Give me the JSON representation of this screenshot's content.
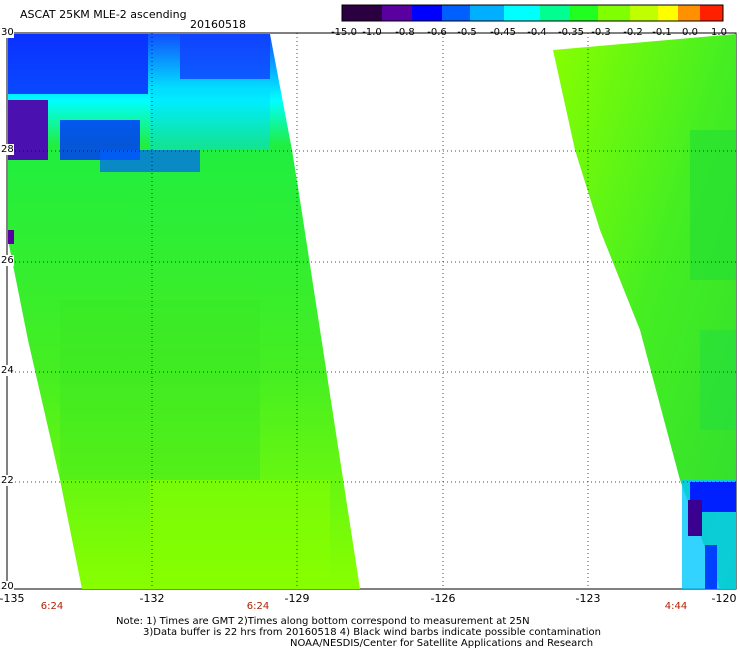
{
  "header": {
    "title": "ASCAT 25KM MLE-2 ascending",
    "date": "20160518"
  },
  "colorbar": {
    "labels": [
      "-15.0",
      "-1.0",
      "-0.8",
      "-0.6",
      "-0.5",
      "-0.45",
      "-0.4",
      "-0.35",
      "-0.3",
      "-0.2",
      "-0.1",
      "0.0",
      "1.0"
    ],
    "colors": [
      "#2a0040",
      "#5a00a0",
      "#0000ff",
      "#0060ff",
      "#00b0ff",
      "#00ffff",
      "#00ff90",
      "#20ff20",
      "#80ff00",
      "#c0ff00",
      "#ffff00",
      "#ff9000",
      "#ff2000"
    ]
  },
  "map": {
    "lon_labels": [
      "-135",
      "-132",
      "-129",
      "-126",
      "-123",
      "-120"
    ],
    "lat_labels": [
      "30",
      "28",
      "26",
      "24",
      "22",
      "20"
    ],
    "time_labels": [
      "6:24",
      "6:24",
      "4:44"
    ],
    "colors": {
      "swath_green": "#44ee22",
      "swath_yellow_green": "#88ff00",
      "cyan": "#00ffff",
      "blue": "#0000ff",
      "purple": "#5a00a0",
      "grid": "#000000"
    }
  },
  "notes": {
    "line1": "Note: 1) Times are GMT 2)Times along bottom correspond to measurement at 25N",
    "line2": "3)Data buffer is 22 hrs from 20160518 4) Black wind barbs indicate possible contamination",
    "line3": "NOAA/NESDIS/Center for Satellite Applications and Research"
  }
}
